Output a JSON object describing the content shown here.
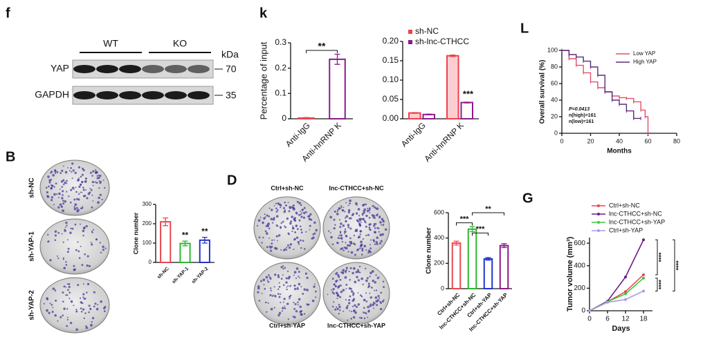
{
  "blot": {
    "panel": "f",
    "groups": [
      "WT",
      "KO"
    ],
    "unit": "kDa",
    "rows": [
      {
        "label": "YAP",
        "size": 70
      },
      {
        "label": "GAPDH",
        "size": 35
      }
    ]
  },
  "colony_B": {
    "panel": "B",
    "labels": [
      "sh-NC",
      "sh-YAP-1",
      "sh-YAP-2"
    ]
  },
  "colony_D": {
    "panel": "D",
    "labels": [
      "Ctrl+sh-NC",
      "lnc-CTHCC+sh-NC",
      "Ctrl+sh-YAP",
      "lnc-CTHCC+sh-YAP"
    ]
  },
  "chart_data": [
    {
      "type": "bar",
      "panel": "k",
      "ylabel": "Percentage of input",
      "categories": [
        "Anti-IgG",
        "Anti-hnRNP K"
      ],
      "values": [
        0.003,
        0.235
      ],
      "errors": [
        0.002,
        0.02
      ],
      "colors": [
        "#e8474f",
        "#8b1a8b"
      ],
      "ylim": [
        0,
        0.3
      ],
      "yticks": [
        0,
        0.1,
        0.2,
        0.3
      ],
      "annotations": [
        "**"
      ]
    },
    {
      "type": "bar",
      "categories": [
        "Anti-IgG",
        "Anti-hnRNP K"
      ],
      "series": [
        {
          "name": "sh-NC",
          "color": "#f0404a",
          "values": [
            0.015,
            0.163
          ],
          "errors": [
            0.001,
            0.002
          ]
        },
        {
          "name": "sh-lnc-CTHCC",
          "color": "#8b1a8b",
          "values": [
            0.011,
            0.042
          ],
          "errors": [
            0.001,
            0.001
          ]
        }
      ],
      "ylim": [
        0,
        0.2
      ],
      "yticks": [
        {
          "value": 0,
          "label": "0.00"
        },
        {
          "value": 0.05,
          "label": "0.05"
        },
        {
          "value": 0.1,
          "label": "0.10"
        },
        {
          "value": 0.15,
          "label": "0.15"
        },
        {
          "value": 0.2,
          "label": "0.20"
        }
      ],
      "annotations": [
        "***"
      ]
    },
    {
      "type": "step",
      "panel": "L",
      "ylabel": "Overall survival (%)",
      "xlabel": "Months",
      "xlim": [
        0,
        80
      ],
      "xticks": [
        0,
        20,
        40,
        60,
        80
      ],
      "ylim": [
        0,
        100
      ],
      "yticks": [
        0,
        20,
        40,
        60,
        80,
        100
      ],
      "series": [
        {
          "name": "Low YAP",
          "color": "#e0506a",
          "x": [
            0,
            5,
            10,
            15,
            20,
            25,
            30,
            35,
            40,
            45,
            50,
            55,
            58,
            60
          ],
          "values": [
            100,
            90,
            82,
            73,
            62,
            55,
            50,
            45,
            43,
            42,
            38,
            28,
            20,
            0
          ]
        },
        {
          "name": "High YAP",
          "color": "#5a2a7a",
          "x": [
            0,
            5,
            10,
            15,
            20,
            25,
            30,
            35,
            40,
            45,
            50,
            55
          ],
          "values": [
            100,
            95,
            92,
            87,
            80,
            70,
            50,
            40,
            35,
            27,
            18,
            18
          ]
        }
      ],
      "annotations": [
        "P=0.0413",
        "n(high)=161",
        "n(low)=161"
      ]
    },
    {
      "type": "bar",
      "ylabel": "Clone number",
      "categories": [
        "sh-NC",
        "sh-YAP-1",
        "sh-YAP-2"
      ],
      "values": [
        210,
        98,
        115
      ],
      "errors": [
        20,
        12,
        15
      ],
      "colors": [
        "#e8474f",
        "#2db82d",
        "#2233cc"
      ],
      "ylim": [
        0,
        300
      ],
      "yticks": [
        0,
        100,
        200,
        300
      ],
      "annotations": [
        "**",
        "**"
      ]
    },
    {
      "type": "bar",
      "ylabel": "Clone number",
      "categories": [
        "Ctrl+sh-NC",
        "lnc-CTHCC+sh-NC",
        "Ctrl+sh-YAP",
        "lnc-CTHCC+sh-YAP"
      ],
      "values": [
        360,
        470,
        235,
        340
      ],
      "errors": [
        15,
        20,
        10,
        15
      ],
      "colors": [
        "#e8474f",
        "#2db82d",
        "#2233cc",
        "#8b1a8b"
      ],
      "ylim": [
        0,
        600
      ],
      "yticks": [
        0,
        200,
        400,
        600
      ],
      "annotations": [
        "***",
        "***",
        "**"
      ]
    },
    {
      "type": "line",
      "panel": "G",
      "ylabel": "Tumor volume (mm³)",
      "xlabel": "Days",
      "x": [
        0,
        6,
        12,
        18
      ],
      "xlim": [
        0,
        21
      ],
      "xticks": [
        0,
        6,
        12,
        18
      ],
      "ylim": [
        0,
        650
      ],
      "yticks": [
        0,
        200,
        400,
        600
      ],
      "series": [
        {
          "name": "Ctrl+sh-NC",
          "color": "#e8474f",
          "values": [
            0,
            80,
            170,
            320
          ]
        },
        {
          "name": "lnc-CTHCC+sh-NC",
          "color": "#6a1a8a",
          "values": [
            0,
            85,
            300,
            630
          ]
        },
        {
          "name": "lnc-CTHCC+sh-YAP",
          "color": "#3ec83e",
          "values": [
            0,
            80,
            150,
            290
          ]
        },
        {
          "name": "Ctrl+sh-YAP",
          "color": "#a99ae0",
          "values": [
            0,
            75,
            100,
            175
          ]
        }
      ],
      "annotations": [
        "****",
        "****",
        "****"
      ]
    }
  ]
}
